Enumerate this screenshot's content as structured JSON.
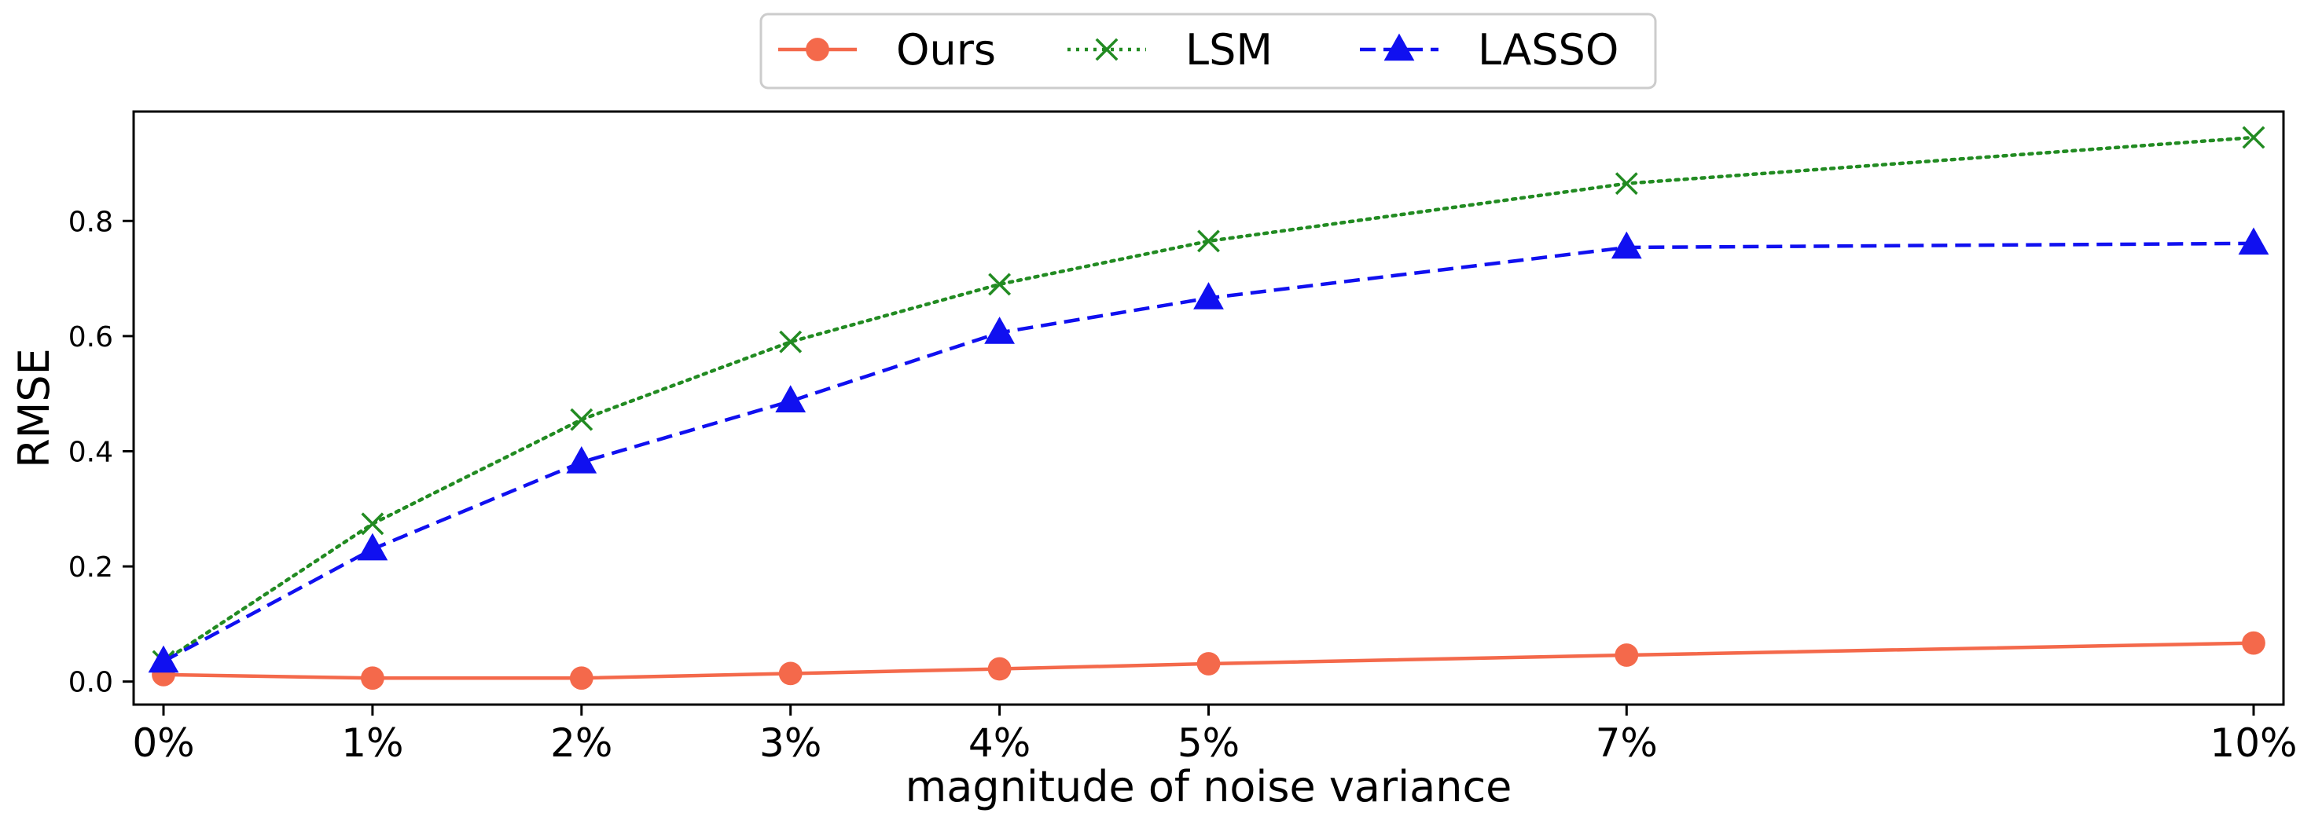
{
  "chart_data": {
    "type": "line",
    "title": "",
    "xlabel": "magnitude of noise variance",
    "ylabel": "RMSE",
    "x": [
      0,
      1,
      2,
      3,
      4,
      5,
      7,
      10
    ],
    "x_tick_labels": [
      "0%",
      "1%",
      "2%",
      "3%",
      "4%",
      "5%",
      "7%",
      "10%"
    ],
    "y_ticks": [
      0.0,
      0.2,
      0.4,
      0.6,
      0.8
    ],
    "y_tick_labels": [
      "0.0",
      "0.2",
      "0.4",
      "0.6",
      "0.8"
    ],
    "xlim": [
      0,
      10
    ],
    "ylim": [
      -0.04,
      0.99
    ],
    "grid": false,
    "legend_position": "top-center",
    "series": [
      {
        "name": "Ours",
        "color": "#F4694B",
        "line_style": "solid",
        "marker": "circle",
        "values": [
          0.012,
          0.006,
          0.006,
          0.014,
          0.022,
          0.031,
          0.046,
          0.067
        ]
      },
      {
        "name": "LSM",
        "color": "#228B22",
        "line_style": "dotted",
        "marker": "x",
        "values": [
          0.035,
          0.274,
          0.455,
          0.59,
          0.69,
          0.765,
          0.865,
          0.945
        ]
      },
      {
        "name": "LASSO",
        "color": "#1010F0",
        "line_style": "dashed",
        "marker": "triangle",
        "values": [
          0.035,
          0.23,
          0.381,
          0.487,
          0.606,
          0.666,
          0.754,
          0.761
        ]
      }
    ]
  }
}
